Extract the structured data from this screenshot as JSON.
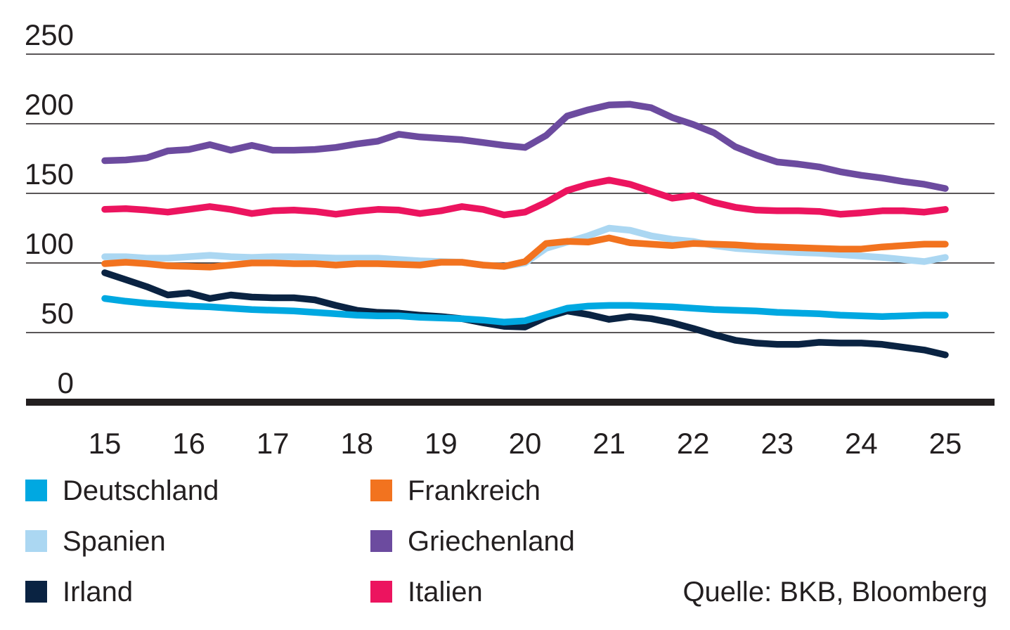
{
  "chart_data": {
    "type": "line",
    "x_start": 15,
    "x_step": 0.25,
    "x_ticks": [
      15,
      16,
      17,
      18,
      19,
      20,
      21,
      22,
      23,
      24,
      25
    ],
    "y_ticks": [
      0,
      50,
      100,
      150,
      200,
      250
    ],
    "xlim": [
      15,
      25
    ],
    "ylim": [
      0,
      250
    ],
    "grid": "horizontal-only",
    "legend_position": "bottom",
    "source": "Quelle: BKB, Bloomberg",
    "series": [
      {
        "name": "Griechenland",
        "color": "#6c4b9f",
        "values": [
          173.5,
          174,
          175.5,
          180.5,
          181.5,
          185,
          181,
          184.5,
          181,
          181,
          181.5,
          183,
          185.5,
          187.5,
          192.5,
          190.5,
          189.5,
          188.5,
          186.5,
          184.5,
          183,
          191.5,
          205.5,
          210,
          213.5,
          214,
          211.5,
          204.5,
          199.5,
          193.5,
          183.5,
          177.5,
          172.5,
          171,
          169,
          165.5,
          163,
          161,
          158.5,
          156.5,
          153.5
        ]
      },
      {
        "name": "Italien",
        "color": "#ec145f",
        "values": [
          138.5,
          139,
          138,
          136.5,
          138.5,
          140.5,
          138.5,
          135.5,
          137.5,
          138,
          137,
          135,
          137,
          138.5,
          138,
          135.5,
          137.5,
          140.5,
          138.5,
          134.5,
          136.5,
          143.5,
          152,
          156.5,
          159.5,
          156.5,
          151.5,
          146.5,
          148.5,
          143.5,
          140,
          138,
          137.5,
          137.5,
          137,
          135,
          136,
          137.5,
          137.5,
          136.5,
          138.5
        ]
      },
      {
        "name": "Spanien",
        "color": "#abd7f2",
        "values": [
          104.5,
          104.5,
          103.5,
          103.5,
          104.5,
          105.5,
          104.5,
          104,
          104.5,
          104.5,
          104,
          103.5,
          103.5,
          103.5,
          102.5,
          101.5,
          101,
          100.5,
          98.5,
          97.5,
          100,
          110.5,
          115,
          119.5,
          125,
          123.5,
          119.5,
          117,
          115.5,
          112.5,
          110.5,
          109.5,
          108.5,
          107.5,
          107,
          106,
          105,
          104,
          102.5,
          101,
          104
        ]
      },
      {
        "name": "Frankreich",
        "color": "#f2731f",
        "values": [
          99.5,
          100.5,
          99.5,
          98,
          97.5,
          97,
          98.5,
          100,
          100,
          99.5,
          99.5,
          98.5,
          99.5,
          99.5,
          99,
          98.5,
          100.5,
          100.5,
          98.5,
          97.5,
          101,
          114,
          115.5,
          115,
          118,
          114.5,
          113.5,
          112.5,
          114,
          113.5,
          113,
          112,
          111.5,
          111,
          110.5,
          110,
          110,
          111.5,
          112.5,
          113.5,
          113.5
        ]
      },
      {
        "name": "Irland",
        "color": "#0a2342",
        "values": [
          93,
          88,
          83,
          77,
          78.5,
          74.5,
          77,
          75.5,
          75,
          75,
          73.5,
          69.5,
          66,
          64.5,
          64,
          62.5,
          61.5,
          60,
          57,
          54.5,
          54,
          61,
          65.5,
          63,
          59.5,
          61.5,
          60,
          57,
          53,
          48.5,
          44.5,
          42.5,
          41.5,
          41.5,
          43,
          42.5,
          42.5,
          41.5,
          39.5,
          37.5,
          34
        ]
      },
      {
        "name": "Deutschland",
        "color": "#00a8e1",
        "values": [
          74.5,
          72.5,
          71,
          70,
          69,
          68.5,
          67.5,
          66.5,
          66,
          65.5,
          64.5,
          63.5,
          62.5,
          62,
          62,
          61,
          60.5,
          60,
          59,
          57.5,
          58.5,
          63,
          67.5,
          69,
          69.5,
          69.5,
          69,
          68.5,
          67.5,
          66.5,
          66,
          65.5,
          64.5,
          64,
          63.5,
          62.5,
          62,
          61.5,
          62,
          62.5,
          62.5
        ]
      }
    ]
  },
  "legend": {
    "columns": [
      {
        "items": [
          {
            "label": "Deutschland",
            "color": "#00a8e1"
          },
          {
            "label": "Spanien",
            "color": "#abd7f2"
          },
          {
            "label": "Irland",
            "color": "#0a2342"
          }
        ]
      },
      {
        "items": [
          {
            "label": "Frankreich",
            "color": "#f2731f"
          },
          {
            "label": "Griechenland",
            "color": "#6c4b9f"
          },
          {
            "label": "Italien",
            "color": "#ec145f"
          }
        ]
      }
    ]
  }
}
